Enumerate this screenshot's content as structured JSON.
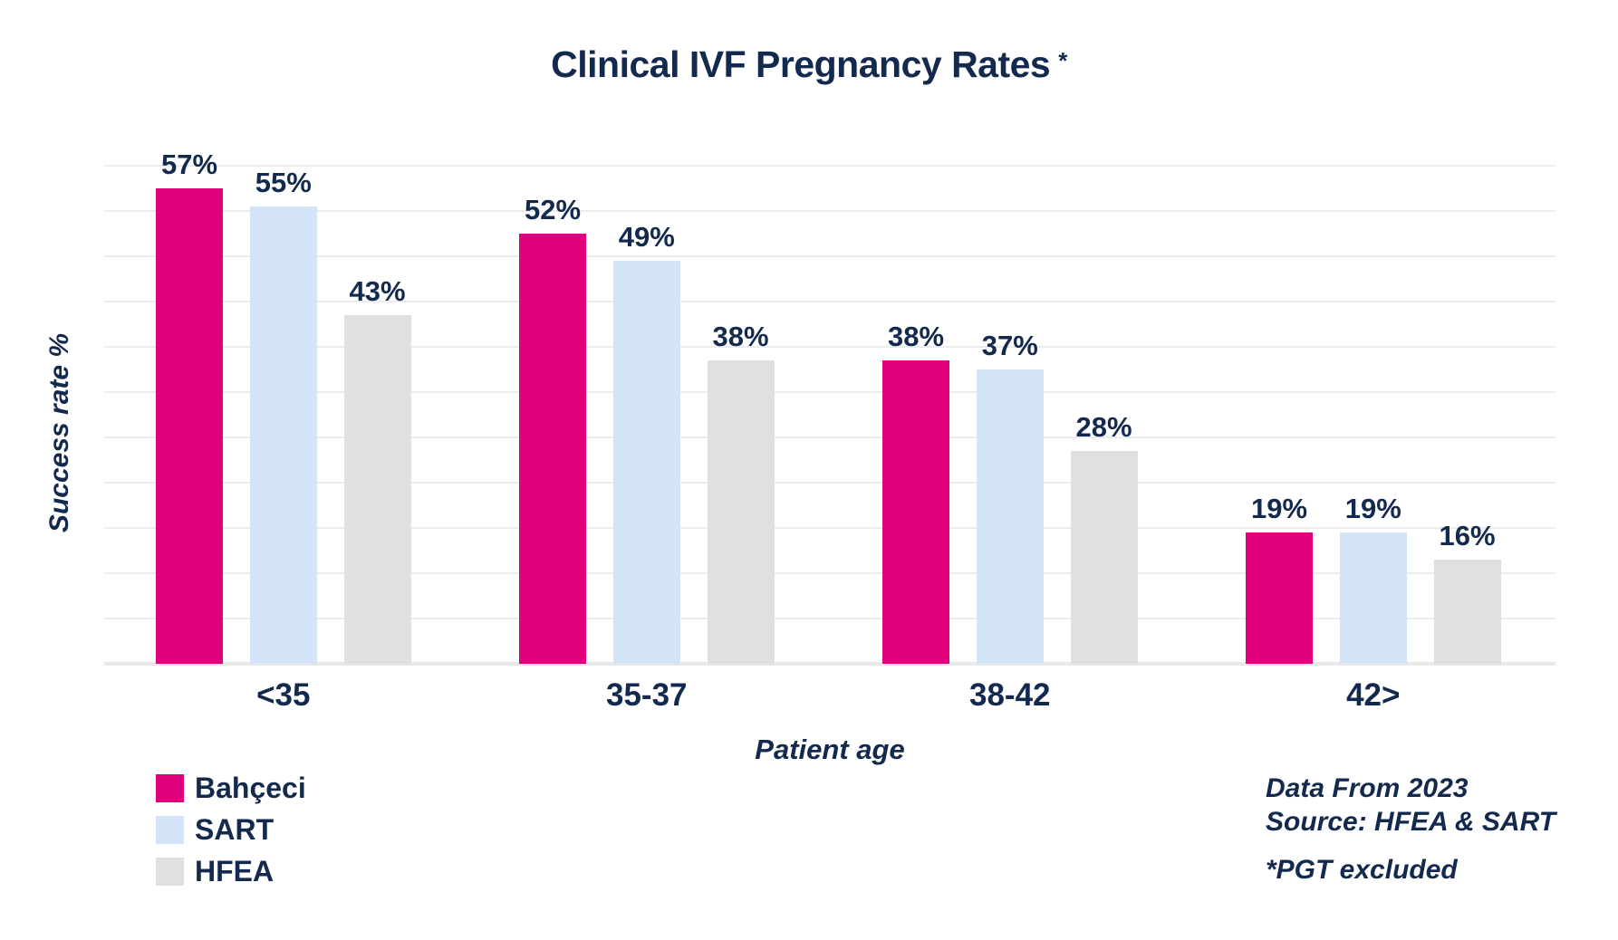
{
  "title": "Clinical IVF Pregnancy Rates",
  "title_asterisk": "*",
  "notes": {
    "line1": "Data From 2023",
    "line2": "Source: HFEA & SART",
    "line3": "*PGT excluded"
  },
  "colors": {
    "navy_text": "#13294e",
    "bahceci_pink": "#e0007c",
    "sart_blue": "#d3e4f8",
    "hfea_gray": "#e0e0e0",
    "gridline": "#ececec",
    "baseline": "#e8e8e8",
    "background": "#ffffff"
  },
  "chart_data": {
    "type": "bar",
    "title": "Clinical IVF Pregnancy Rates *",
    "categories": [
      "<35",
      "35-37",
      "38-42",
      "42>"
    ],
    "series": [
      {
        "name": "Bahçeci",
        "color": "#e0007c",
        "values": [
          57,
          52,
          38,
          19
        ]
      },
      {
        "name": "SART",
        "color": "#d3e4f8",
        "values": [
          55,
          49,
          37,
          19
        ]
      },
      {
        "name": "HFEA",
        "color": "#e0e0e0",
        "values": [
          43,
          38,
          28,
          16
        ]
      }
    ],
    "value_suffix": "%",
    "value_labels_shown": true,
    "xlabel": "Patient age",
    "ylabel": "Success rate %",
    "ylim": [
      0,
      60
    ],
    "y_tick_labels_shown": false,
    "grid": "horizontal",
    "gridline_count": 12,
    "legend_position": "bottom-left"
  }
}
